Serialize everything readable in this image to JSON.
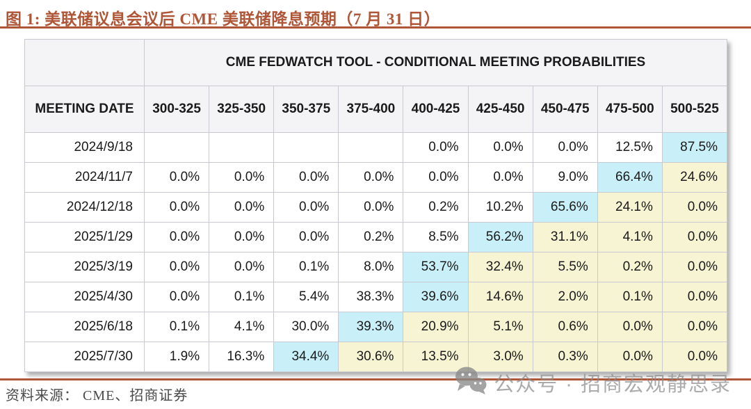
{
  "figure": {
    "title": "图 1: 美联储议息会议后 CME 美联储降息预期（7 月 31 日）",
    "source": "资料来源： CME、招商证券"
  },
  "table": {
    "merged_header": "CME FEDWATCH TOOL - CONDITIONAL MEETING PROBABILITIES",
    "date_column_label": "MEETING DATE",
    "rate_columns": [
      "300-325",
      "325-350",
      "350-375",
      "375-400",
      "400-425",
      "425-450",
      "450-475",
      "475-500",
      "500-525"
    ],
    "rows": [
      {
        "date": "2024/9/18",
        "values": [
          "",
          "",
          "",
          "",
          "0.0%",
          "0.0%",
          "0.0%",
          "12.5%",
          "87.5%"
        ],
        "styles": [
          "white",
          "white",
          "white",
          "white",
          "white",
          "white",
          "white",
          "white",
          "cyan"
        ]
      },
      {
        "date": "2024/11/7",
        "values": [
          "0.0%",
          "0.0%",
          "0.0%",
          "0.0%",
          "0.0%",
          "0.0%",
          "9.0%",
          "66.4%",
          "24.6%"
        ],
        "styles": [
          "white",
          "white",
          "white",
          "white",
          "white",
          "white",
          "white",
          "cyan",
          "yellow"
        ]
      },
      {
        "date": "2024/12/18",
        "values": [
          "0.0%",
          "0.0%",
          "0.0%",
          "0.0%",
          "0.2%",
          "10.2%",
          "65.6%",
          "24.1%",
          "0.0%"
        ],
        "styles": [
          "white",
          "white",
          "white",
          "white",
          "white",
          "white",
          "cyan",
          "yellow",
          "yellow"
        ]
      },
      {
        "date": "2025/1/29",
        "values": [
          "0.0%",
          "0.0%",
          "0.0%",
          "0.2%",
          "8.5%",
          "56.2%",
          "31.1%",
          "4.1%",
          "0.0%"
        ],
        "styles": [
          "white",
          "white",
          "white",
          "white",
          "white",
          "cyan",
          "yellow",
          "yellow",
          "yellow"
        ]
      },
      {
        "date": "2025/3/19",
        "values": [
          "0.0%",
          "0.0%",
          "0.1%",
          "8.0%",
          "53.7%",
          "32.4%",
          "5.5%",
          "0.2%",
          "0.0%"
        ],
        "styles": [
          "white",
          "white",
          "white",
          "white",
          "cyan",
          "yellow",
          "yellow",
          "yellow",
          "yellow"
        ]
      },
      {
        "date": "2025/4/30",
        "values": [
          "0.0%",
          "0.1%",
          "5.4%",
          "38.3%",
          "39.6%",
          "14.6%",
          "2.0%",
          "0.1%",
          "0.0%"
        ],
        "styles": [
          "white",
          "white",
          "white",
          "white",
          "cyan",
          "yellow",
          "yellow",
          "yellow",
          "yellow"
        ]
      },
      {
        "date": "2025/6/18",
        "values": [
          "0.1%",
          "4.1%",
          "30.0%",
          "39.3%",
          "20.9%",
          "5.1%",
          "0.6%",
          "0.0%",
          "0.0%"
        ],
        "styles": [
          "white",
          "white",
          "white",
          "cyan",
          "yellow",
          "yellow",
          "yellow",
          "yellow",
          "yellow"
        ]
      },
      {
        "date": "2025/7/30",
        "values": [
          "1.9%",
          "16.3%",
          "34.4%",
          "30.6%",
          "13.5%",
          "3.0%",
          "0.3%",
          "0.0%",
          "0.0%"
        ],
        "styles": [
          "white",
          "white",
          "cyan",
          "yellow",
          "yellow",
          "yellow",
          "yellow",
          "yellow",
          "yellow"
        ]
      }
    ]
  },
  "watermark": {
    "text": "公众号 · 招商宏观静思录",
    "icon": "wechat-chat-bubbles-icon"
  },
  "colors": {
    "accent": "#AE5637",
    "highlight_cyan": "#C9EFF8",
    "highlight_yellow": "#F6F4D3",
    "header_bg": "#F4F4F6",
    "border": "#C9C9D2",
    "text": "#1A1A1A",
    "source_text": "#4A4A4A",
    "watermark_gray": "#8C8C8C"
  }
}
